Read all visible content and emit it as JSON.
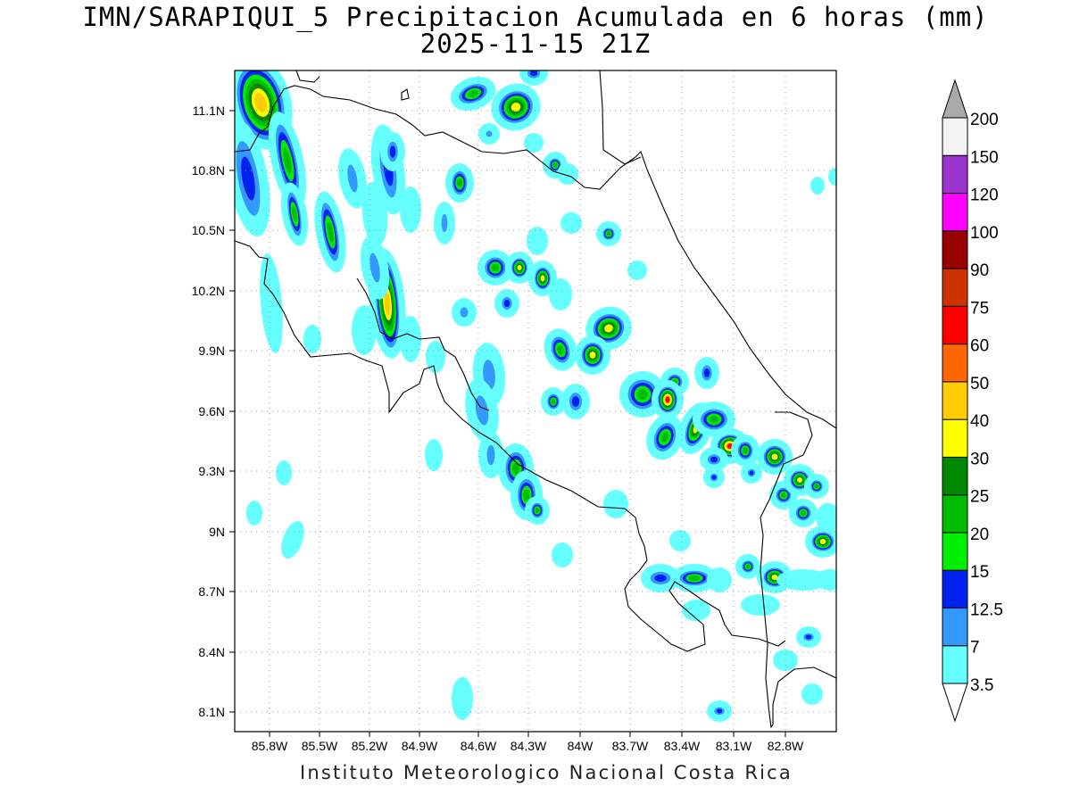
{
  "title": {
    "line1": "IMN/SARAPIQUI_5 Precipitacion Acumulada en 6 horas (mm)",
    "line2": "2025-11-15 21Z"
  },
  "credit": "Instituto Meteorologico Nacional Costa Rica",
  "map": {
    "lat_labels": [
      "11.1N",
      "10.8N",
      "10.5N",
      "10.2N",
      "9.9N",
      "9.6N",
      "9.3N",
      "9N",
      "8.7N",
      "8.4N",
      "8.1N"
    ],
    "lon_labels": [
      "85.8W",
      "85.5W",
      "85.2W",
      "84.9W",
      "84.6W",
      "84.3W",
      "84W",
      "83.7W",
      "83.4W",
      "83.1W",
      "82.8W"
    ]
  },
  "colorbar": {
    "levels": [
      "3.5",
      "7",
      "12.5",
      "15",
      "20",
      "25",
      "30",
      "40",
      "50",
      "60",
      "75",
      "90",
      "100",
      "120",
      "150",
      "200"
    ],
    "colors": [
      "#66ffff",
      "#3399ff",
      "#0022ee",
      "#00ee00",
      "#00bb00",
      "#008800",
      "#ffff00",
      "#ffcc00",
      "#ff6600",
      "#ff0000",
      "#cc3300",
      "#990000",
      "#ff00ff",
      "#9933cc",
      "#f4f4f4",
      "#aaaaaa"
    ]
  },
  "legend_colors": {
    "lightcyan": "#66ffff",
    "lightblue": "#3399ff",
    "blue": "#0022ee",
    "lightgreen": "#00ee00",
    "green": "#00bb00",
    "darkgreen": "#008800",
    "yellow": "#ffff00",
    "gold": "#ffcc00",
    "red": "#ff0000"
  }
}
